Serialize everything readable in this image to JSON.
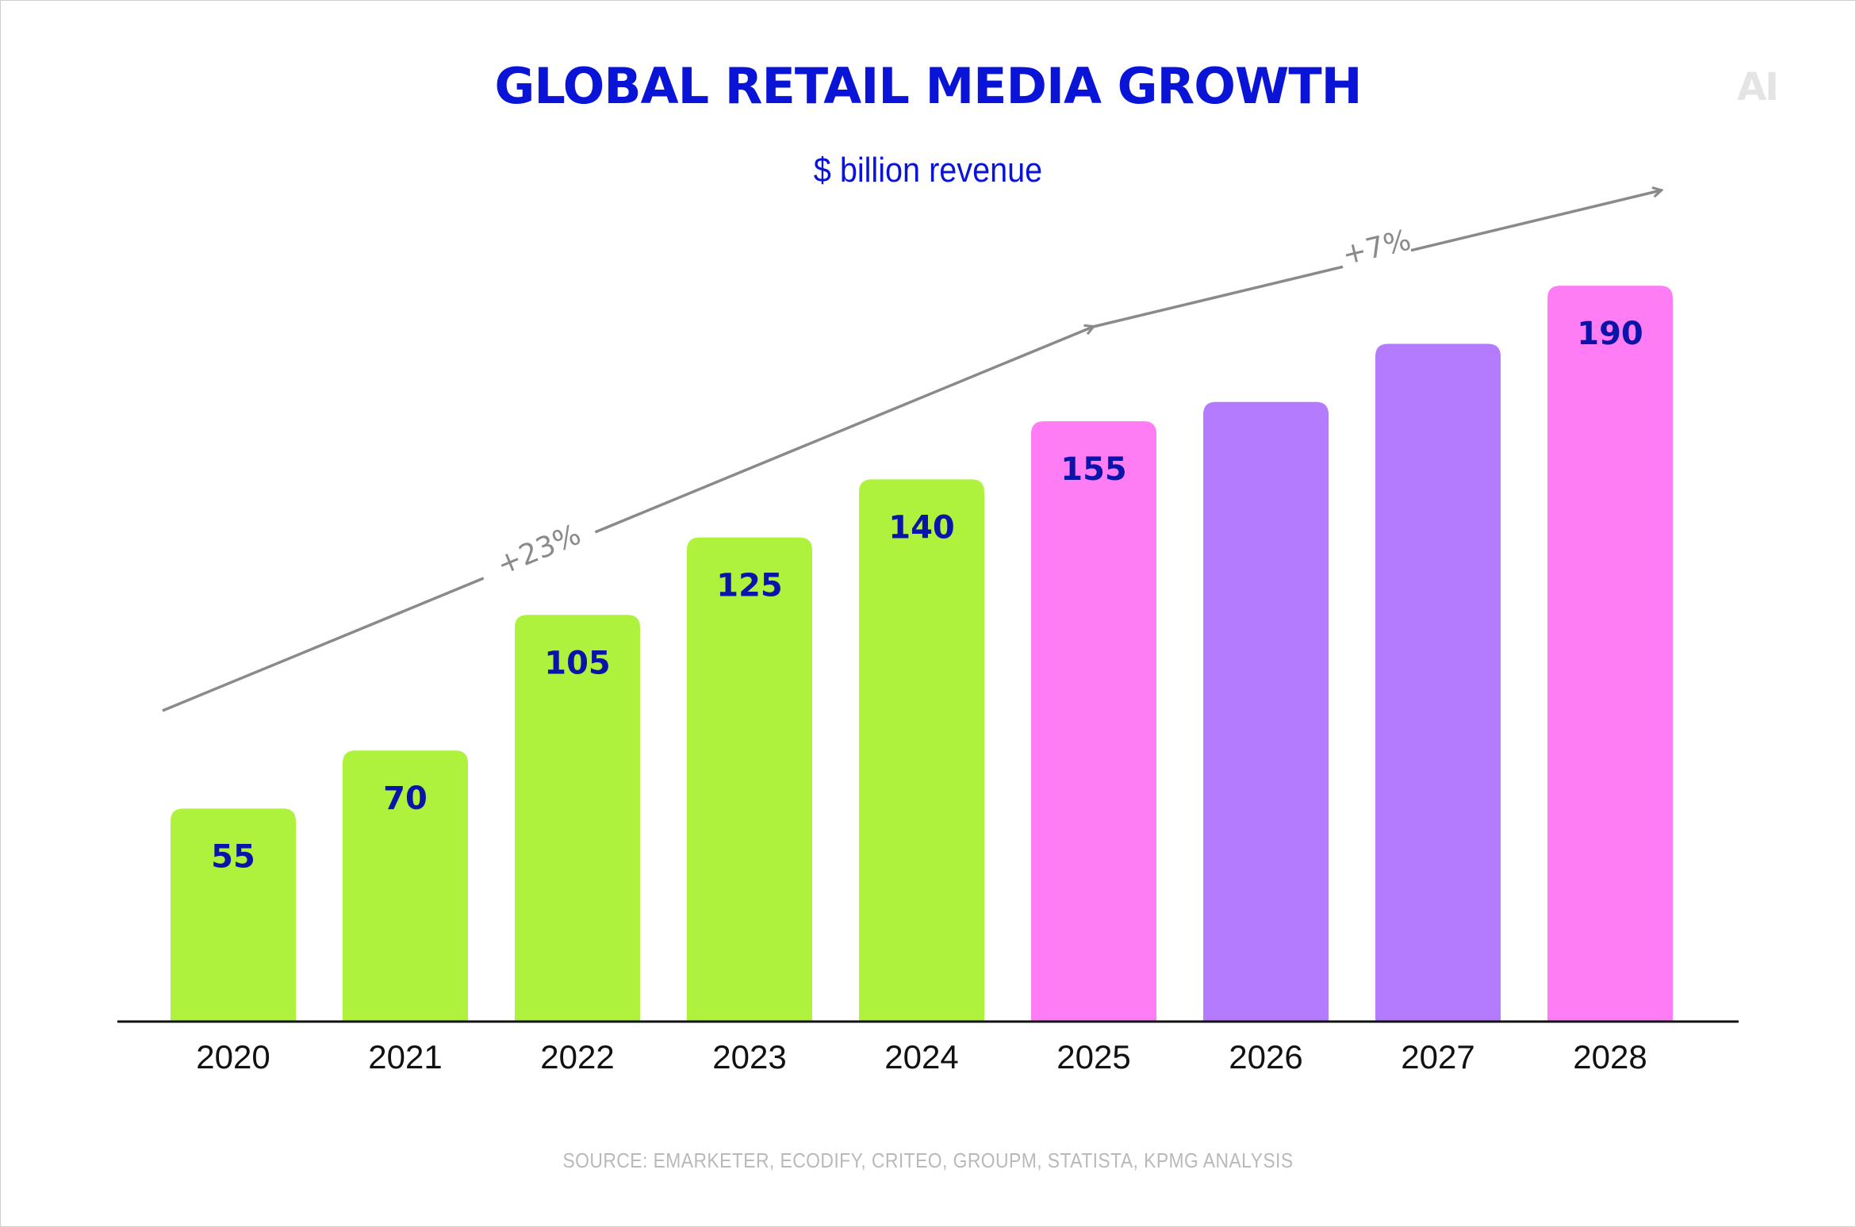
{
  "header": {
    "title": "GLOBAL RETAIL MEDIA GROWTH",
    "subtitle": "$ billion revenue",
    "logo": "AI"
  },
  "footer": {
    "source": "SOURCE: EMARKETER, ECODIFY, CRITEO, GROUPM, STATISTA, KPMG ANALYSIS"
  },
  "colors": {
    "title": "#0a14d6",
    "green": "#aef23e",
    "pink": "#fe7cf4",
    "purple": "#b57bff",
    "label": "#0a14a8",
    "arrow": "#8a8a8a"
  },
  "chart_data": {
    "type": "bar",
    "title": "GLOBAL RETAIL MEDIA GROWTH",
    "subtitle": "$ billion revenue",
    "xlabel": "",
    "ylabel": "",
    "categories": [
      "2020",
      "2021",
      "2022",
      "2023",
      "2024",
      "2025",
      "2026",
      "2027",
      "2028"
    ],
    "values": [
      55,
      70,
      105,
      125,
      140,
      155,
      160,
      175,
      190
    ],
    "data_labels": [
      "55",
      "70",
      "105",
      "125",
      "140",
      "155",
      "",
      "",
      "190"
    ],
    "bar_colors": [
      "green",
      "green",
      "green",
      "green",
      "green",
      "pink",
      "purple",
      "purple",
      "pink"
    ],
    "ylim": [
      0,
      190
    ],
    "grid": false,
    "legend": "none",
    "annotations": [
      {
        "text": "+23%",
        "from": "2020",
        "to": "2025"
      },
      {
        "text": "+7%",
        "from": "2025",
        "to": "2028"
      }
    ]
  }
}
